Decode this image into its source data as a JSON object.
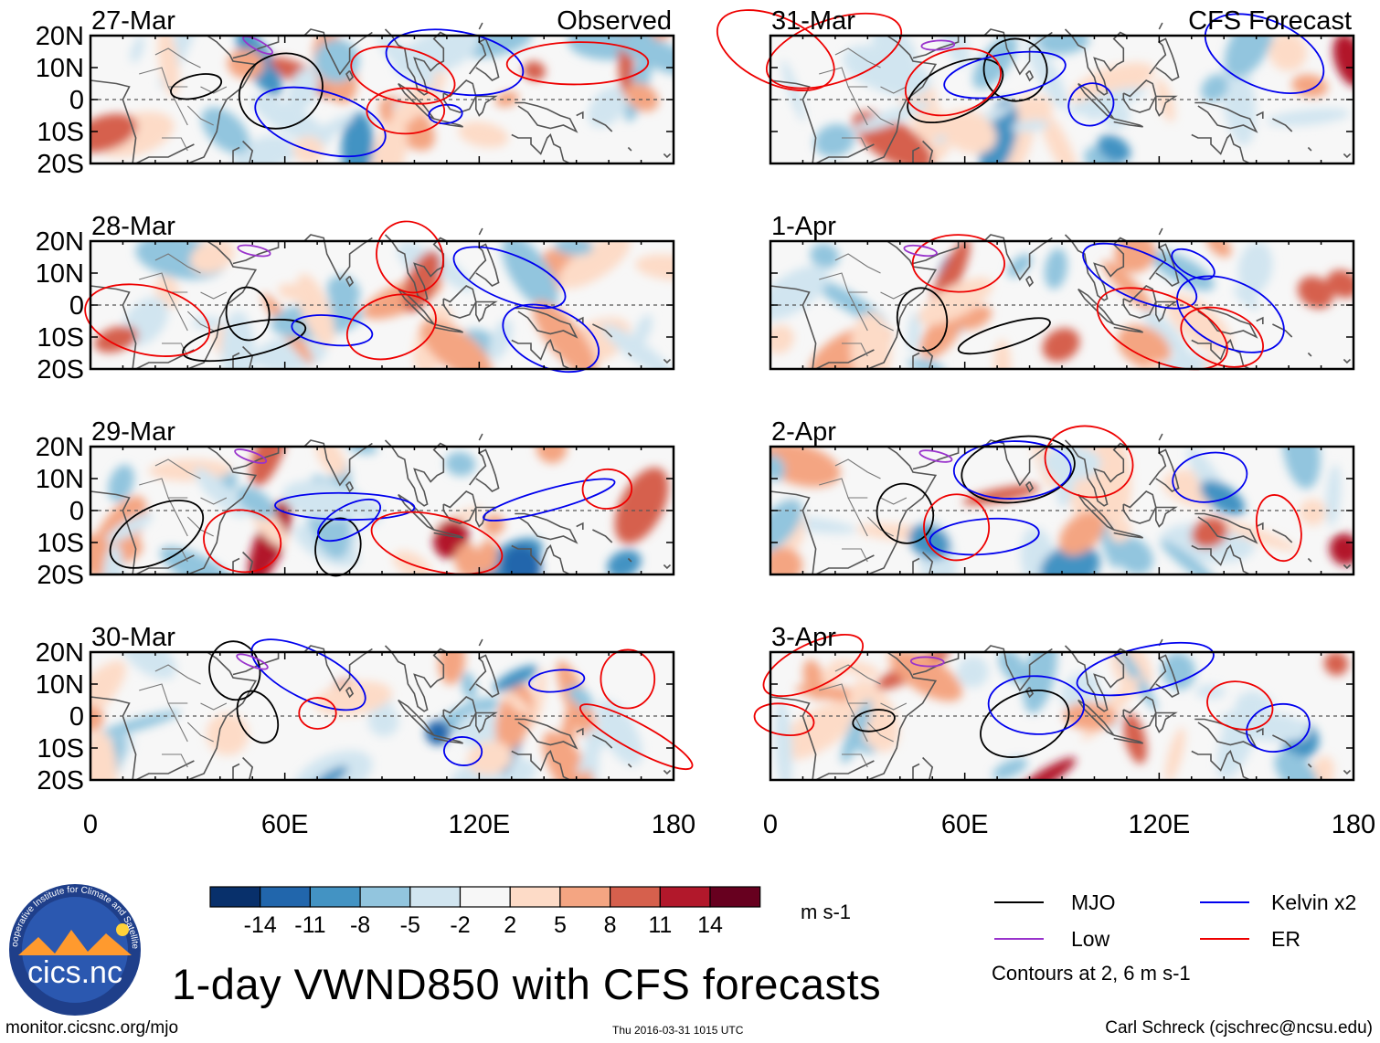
{
  "chart_data": {
    "type": "map",
    "title": "1-day VWND850 with CFS forecasts",
    "observed_label": "Observed",
    "forecast_label": "CFS Forecast",
    "observed_dates": [
      "27-Mar",
      "28-Mar",
      "29-Mar",
      "30-Mar"
    ],
    "forecast_dates": [
      "31-Mar",
      "1-Apr",
      "2-Apr",
      "3-Apr"
    ],
    "lat_labels": [
      "20N",
      "10N",
      "0",
      "10S",
      "20S"
    ],
    "lat_values": [
      20,
      10,
      0,
      -10,
      -20
    ],
    "lon_labels": [
      "0",
      "60E",
      "120E",
      "180"
    ],
    "lon_values": [
      0,
      60,
      120,
      180
    ],
    "lon_range": [
      0,
      180
    ],
    "lat_range": [
      -20,
      20
    ],
    "colorbar_levels": [
      "-14",
      "-11",
      "-8",
      "-5",
      "-2",
      "2",
      "5",
      "8",
      "11",
      "14"
    ],
    "colorbar_colors": [
      "#08306b",
      "#2166ac",
      "#4393c3",
      "#92c5de",
      "#d1e5f0",
      "#f7f7f7",
      "#fddbc7",
      "#f4a582",
      "#d6604d",
      "#b2182b",
      "#67001f"
    ],
    "units": "m s-1",
    "contours_note": "Contours at 2, 6 m s-1"
  },
  "legend": [
    {
      "label": "MJO",
      "color": "#000000"
    },
    {
      "label": "Kelvin x2",
      "color": "#0000ee"
    },
    {
      "label": "Low",
      "color": "#9933cc"
    },
    {
      "label": "ER",
      "color": "#ee0000"
    }
  ],
  "logo": {
    "name": "cics.nc",
    "ring_text": "Cooperative Institute for Climate and Satellites"
  },
  "footer": {
    "url": "monitor.cicsnc.org/mjo",
    "timestamp": "Thu 2016-03-31 1015 UTC",
    "author": "Carl Schreck (cjschrec@ncsu.edu)"
  }
}
